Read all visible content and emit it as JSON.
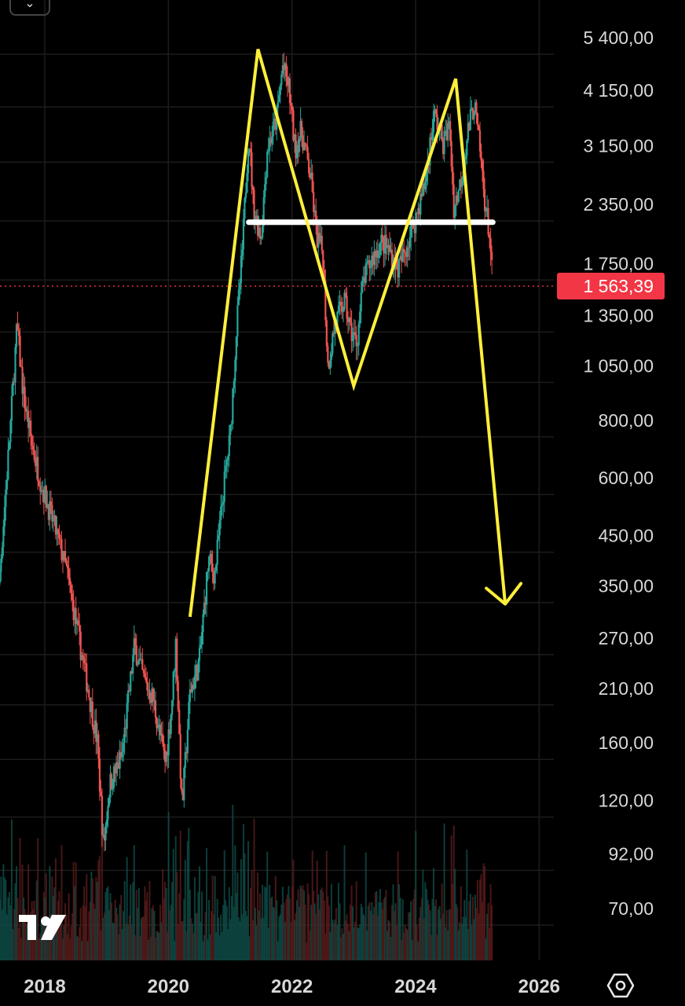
{
  "chart_data": {
    "type": "candlestick",
    "y_scale": "log",
    "price_ticks": [
      "5 400,00",
      "4 150,00",
      "3 150,00",
      "2 350,00",
      "1 750,00",
      "1 350,00",
      "1 050,00",
      "800,00",
      "600,00",
      "450,00",
      "350,00",
      "270,00",
      "210,00",
      "160,00",
      "120,00",
      "92,00",
      "70,00"
    ],
    "price_tick_values": [
      5400,
      4150,
      3150,
      2350,
      1750,
      1350,
      1050,
      800,
      600,
      450,
      350,
      270,
      210,
      160,
      120,
      92,
      70
    ],
    "year_ticks": [
      "2018",
      "2020",
      "2022",
      "2024",
      "2026"
    ],
    "current_price": {
      "label": "1 563,39",
      "value": 1563.39
    },
    "price_path": [
      {
        "t": 2017.1,
        "v": 290
      },
      {
        "t": 2017.25,
        "v": 340
      },
      {
        "t": 2017.45,
        "v": 800
      },
      {
        "t": 2017.55,
        "v": 1280
      },
      {
        "t": 2017.65,
        "v": 920
      },
      {
        "t": 2017.8,
        "v": 700
      },
      {
        "t": 2017.95,
        "v": 580
      },
      {
        "t": 2018.2,
        "v": 450
      },
      {
        "t": 2018.35,
        "v": 380
      },
      {
        "t": 2018.55,
        "v": 270
      },
      {
        "t": 2018.7,
        "v": 210
      },
      {
        "t": 2018.85,
        "v": 160
      },
      {
        "t": 2018.95,
        "v": 95
      },
      {
        "t": 2019.05,
        "v": 130
      },
      {
        "t": 2019.25,
        "v": 150
      },
      {
        "t": 2019.45,
        "v": 260
      },
      {
        "t": 2019.6,
        "v": 220
      },
      {
        "t": 2019.75,
        "v": 200
      },
      {
        "t": 2019.95,
        "v": 145
      },
      {
        "t": 2020.05,
        "v": 190
      },
      {
        "t": 2020.12,
        "v": 265
      },
      {
        "t": 2020.22,
        "v": 115
      },
      {
        "t": 2020.35,
        "v": 205
      },
      {
        "t": 2020.5,
        "v": 240
      },
      {
        "t": 2020.65,
        "v": 400
      },
      {
        "t": 2020.75,
        "v": 370
      },
      {
        "t": 2020.9,
        "v": 580
      },
      {
        "t": 2021.0,
        "v": 740
      },
      {
        "t": 2021.1,
        "v": 1250
      },
      {
        "t": 2021.2,
        "v": 1900
      },
      {
        "t": 2021.3,
        "v": 3400
      },
      {
        "t": 2021.38,
        "v": 2300
      },
      {
        "t": 2021.5,
        "v": 2000
      },
      {
        "t": 2021.6,
        "v": 3100
      },
      {
        "t": 2021.75,
        "v": 3600
      },
      {
        "t": 2021.85,
        "v": 4700
      },
      {
        "t": 2021.95,
        "v": 4200
      },
      {
        "t": 2022.05,
        "v": 3100
      },
      {
        "t": 2022.15,
        "v": 3400
      },
      {
        "t": 2022.3,
        "v": 2700
      },
      {
        "t": 2022.4,
        "v": 2000
      },
      {
        "t": 2022.5,
        "v": 1850
      },
      {
        "t": 2022.58,
        "v": 1050
      },
      {
        "t": 2022.7,
        "v": 1300
      },
      {
        "t": 2022.85,
        "v": 1450
      },
      {
        "t": 2022.95,
        "v": 1250
      },
      {
        "t": 2023.05,
        "v": 1180
      },
      {
        "t": 2023.15,
        "v": 1600
      },
      {
        "t": 2023.3,
        "v": 1800
      },
      {
        "t": 2023.45,
        "v": 1950
      },
      {
        "t": 2023.6,
        "v": 1850
      },
      {
        "t": 2023.72,
        "v": 1700
      },
      {
        "t": 2023.85,
        "v": 1900
      },
      {
        "t": 2024.0,
        "v": 2200
      },
      {
        "t": 2024.15,
        "v": 2600
      },
      {
        "t": 2024.3,
        "v": 3700
      },
      {
        "t": 2024.45,
        "v": 3200
      },
      {
        "t": 2024.55,
        "v": 3500
      },
      {
        "t": 2024.62,
        "v": 2300
      },
      {
        "t": 2024.72,
        "v": 2600
      },
      {
        "t": 2024.85,
        "v": 3400
      },
      {
        "t": 2024.95,
        "v": 3900
      },
      {
        "t": 2025.05,
        "v": 3000
      },
      {
        "t": 2025.12,
        "v": 2400
      },
      {
        "t": 2025.2,
        "v": 2000
      },
      {
        "t": 2025.25,
        "v": 1563.39
      }
    ],
    "annotations": {
      "neckline": {
        "t0": 2021.3,
        "t1": 2025.25,
        "v": 2150
      },
      "m_pattern": [
        {
          "t": 2020.35,
          "v": 300
        },
        {
          "t": 2021.45,
          "v": 5100
        },
        {
          "t": 2023.0,
          "v": 950
        },
        {
          "t": 2024.65,
          "v": 4400
        },
        {
          "t": 2025.45,
          "v": 320
        }
      ],
      "arrow_head": {
        "t": 2025.45,
        "v": 320
      }
    },
    "colors": {
      "up": "#26a69a",
      "down": "#ef5350",
      "annotation": "#ffef3a",
      "neckline": "#ffffff",
      "current_price_bg": "#f23645",
      "grid": "#1c1c1c"
    }
  },
  "icons": {
    "logo": "tradingview-logo-icon",
    "settings": "settings-hexagon-icon",
    "collapse": "chevron-down-icon"
  }
}
